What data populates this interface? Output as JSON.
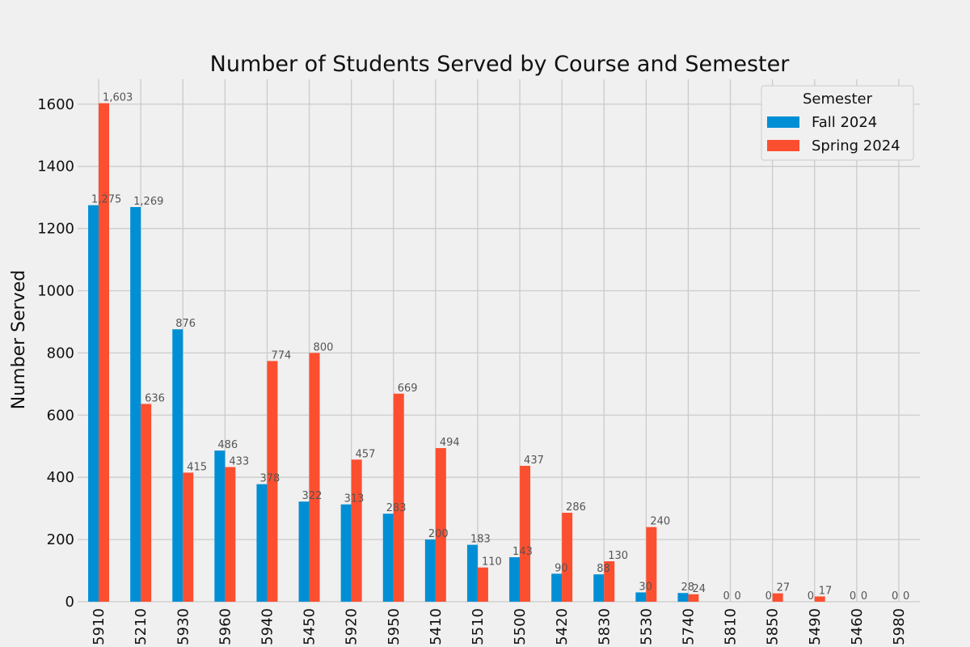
{
  "chart_data": {
    "type": "bar",
    "title": "Number of Students Served by Course and Semester",
    "xlabel": "",
    "ylabel": "Number Served",
    "ylim": [
      0,
      1680
    ],
    "yticks": [
      0,
      200,
      400,
      600,
      800,
      1000,
      1200,
      1400,
      1600
    ],
    "grid": true,
    "legend": {
      "title": "Semester",
      "placement": "top-right"
    },
    "categories": [
      "5910",
      "5210",
      "5930",
      "5960",
      "5940",
      "5450",
      "5920",
      "5950",
      "5410",
      "5510",
      "5500",
      "5420",
      "5830",
      "5530",
      "5740",
      "5810",
      "5850",
      "5490",
      "5460",
      "5980"
    ],
    "series": [
      {
        "name": "Fall 2024",
        "color": "#008fd5",
        "values": [
          1275,
          1269,
          876,
          486,
          378,
          322,
          313,
          283,
          200,
          183,
          143,
          90,
          88,
          30,
          28,
          0,
          0,
          0,
          0,
          0
        ],
        "labels": [
          "1,275",
          "1,269",
          "876",
          "486",
          "378",
          "322",
          "313",
          "283",
          "200",
          "183",
          "143",
          "90",
          "88",
          "30",
          "28",
          "0",
          "0",
          "0",
          "0",
          "0"
        ]
      },
      {
        "name": "Spring 2024",
        "color": "#fc4f30",
        "values": [
          1603,
          636,
          415,
          433,
          774,
          800,
          457,
          669,
          494,
          110,
          437,
          286,
          130,
          240,
          24,
          0,
          27,
          17,
          0,
          0
        ],
        "labels": [
          "1,603",
          "636",
          "415",
          "433",
          "774",
          "800",
          "457",
          "669",
          "494",
          "110",
          "437",
          "286",
          "130",
          "240",
          "24",
          "0",
          "27",
          "17",
          "0",
          "0"
        ]
      }
    ]
  }
}
